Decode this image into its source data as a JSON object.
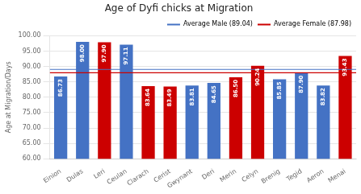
{
  "chart_data": {
    "type": "bar",
    "title": "Age of Dyfi chicks at Migration",
    "ylabel": "Age at Migration/Days",
    "categories": [
      "Einion",
      "Dulas",
      "Leri",
      "Ceulan",
      "Clarach",
      "Cerist",
      "Gwynant",
      "Deri",
      "Merin",
      "Celyn",
      "Brenig",
      "Tegid",
      "Aeron",
      "Menai"
    ],
    "values": [
      86.73,
      98.0,
      97.9,
      97.11,
      83.64,
      83.49,
      83.81,
      84.65,
      86.5,
      90.24,
      85.85,
      87.9,
      83.82,
      93.43
    ],
    "value_labels": [
      "86.73",
      "98.00",
      "97.90",
      "97.11",
      "83.64",
      "83.49",
      "83.81",
      "84.65",
      "86.50",
      "90.24",
      "85.85",
      "87.90",
      "83.82",
      "93.43"
    ],
    "colors": [
      "#4472C4",
      "#4472C4",
      "#CC0000",
      "#4472C4",
      "#CC0000",
      "#CC0000",
      "#4472C4",
      "#4472C4",
      "#CC0000",
      "#CC0000",
      "#4472C4",
      "#4472C4",
      "#4472C4",
      "#CC0000"
    ],
    "data_labels": true,
    "ylim": [
      60.0,
      100.0
    ],
    "yticks": [
      {
        "value": 60.0,
        "label": "60.00"
      },
      {
        "value": 65.0,
        "label": "65.00"
      },
      {
        "value": 70.0,
        "label": "70.00"
      },
      {
        "value": 75.0,
        "label": "75.00"
      },
      {
        "value": 80.0,
        "label": "80.00"
      },
      {
        "value": 85.0,
        "label": "85.00"
      },
      {
        "value": 90.0,
        "label": "90.00"
      },
      {
        "value": 95.0,
        "label": "95.00"
      },
      {
        "value": 100.0,
        "label": "100.00"
      }
    ],
    "grid": true,
    "legend": "upper right",
    "reference_lines": [
      {
        "name": "Average Male (89.04)",
        "value": 89.04,
        "color": "#4472C4"
      },
      {
        "name": "Average Female (87.98)",
        "value": 87.98,
        "color": "#CC0000"
      }
    ]
  }
}
